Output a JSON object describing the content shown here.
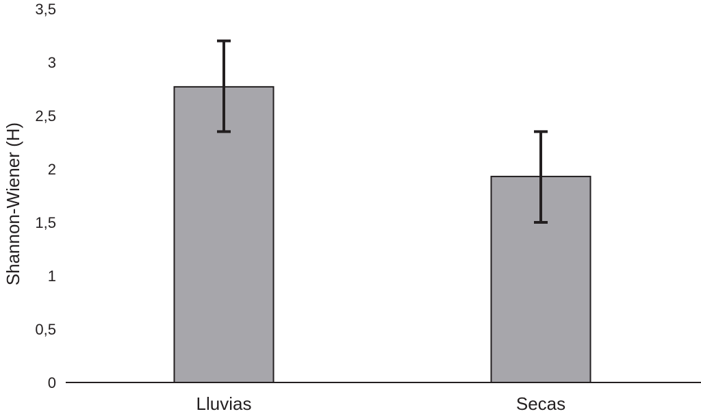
{
  "chart_data": {
    "type": "bar",
    "title": "",
    "xlabel": "",
    "ylabel": "Shannon-Wiener (H)",
    "categories": [
      "Lluvias",
      "Secas"
    ],
    "values": [
      2.77,
      1.93
    ],
    "error_low": [
      2.35,
      1.5
    ],
    "error_high": [
      3.2,
      2.35
    ],
    "ylim": [
      0,
      3.5
    ],
    "yticks": [
      0,
      0.5,
      1,
      1.5,
      2,
      2.5,
      3,
      3.5
    ],
    "ytick_labels": [
      "0",
      "0,5",
      "1",
      "1,5",
      "2",
      "2,5",
      "3",
      "3,5"
    ],
    "grid": false,
    "legend": "none",
    "colors": {
      "bar_fill": "#a7a6ab",
      "bar_stroke": "#231f20",
      "axis": "#231f20",
      "error_bar": "#231f20"
    }
  }
}
